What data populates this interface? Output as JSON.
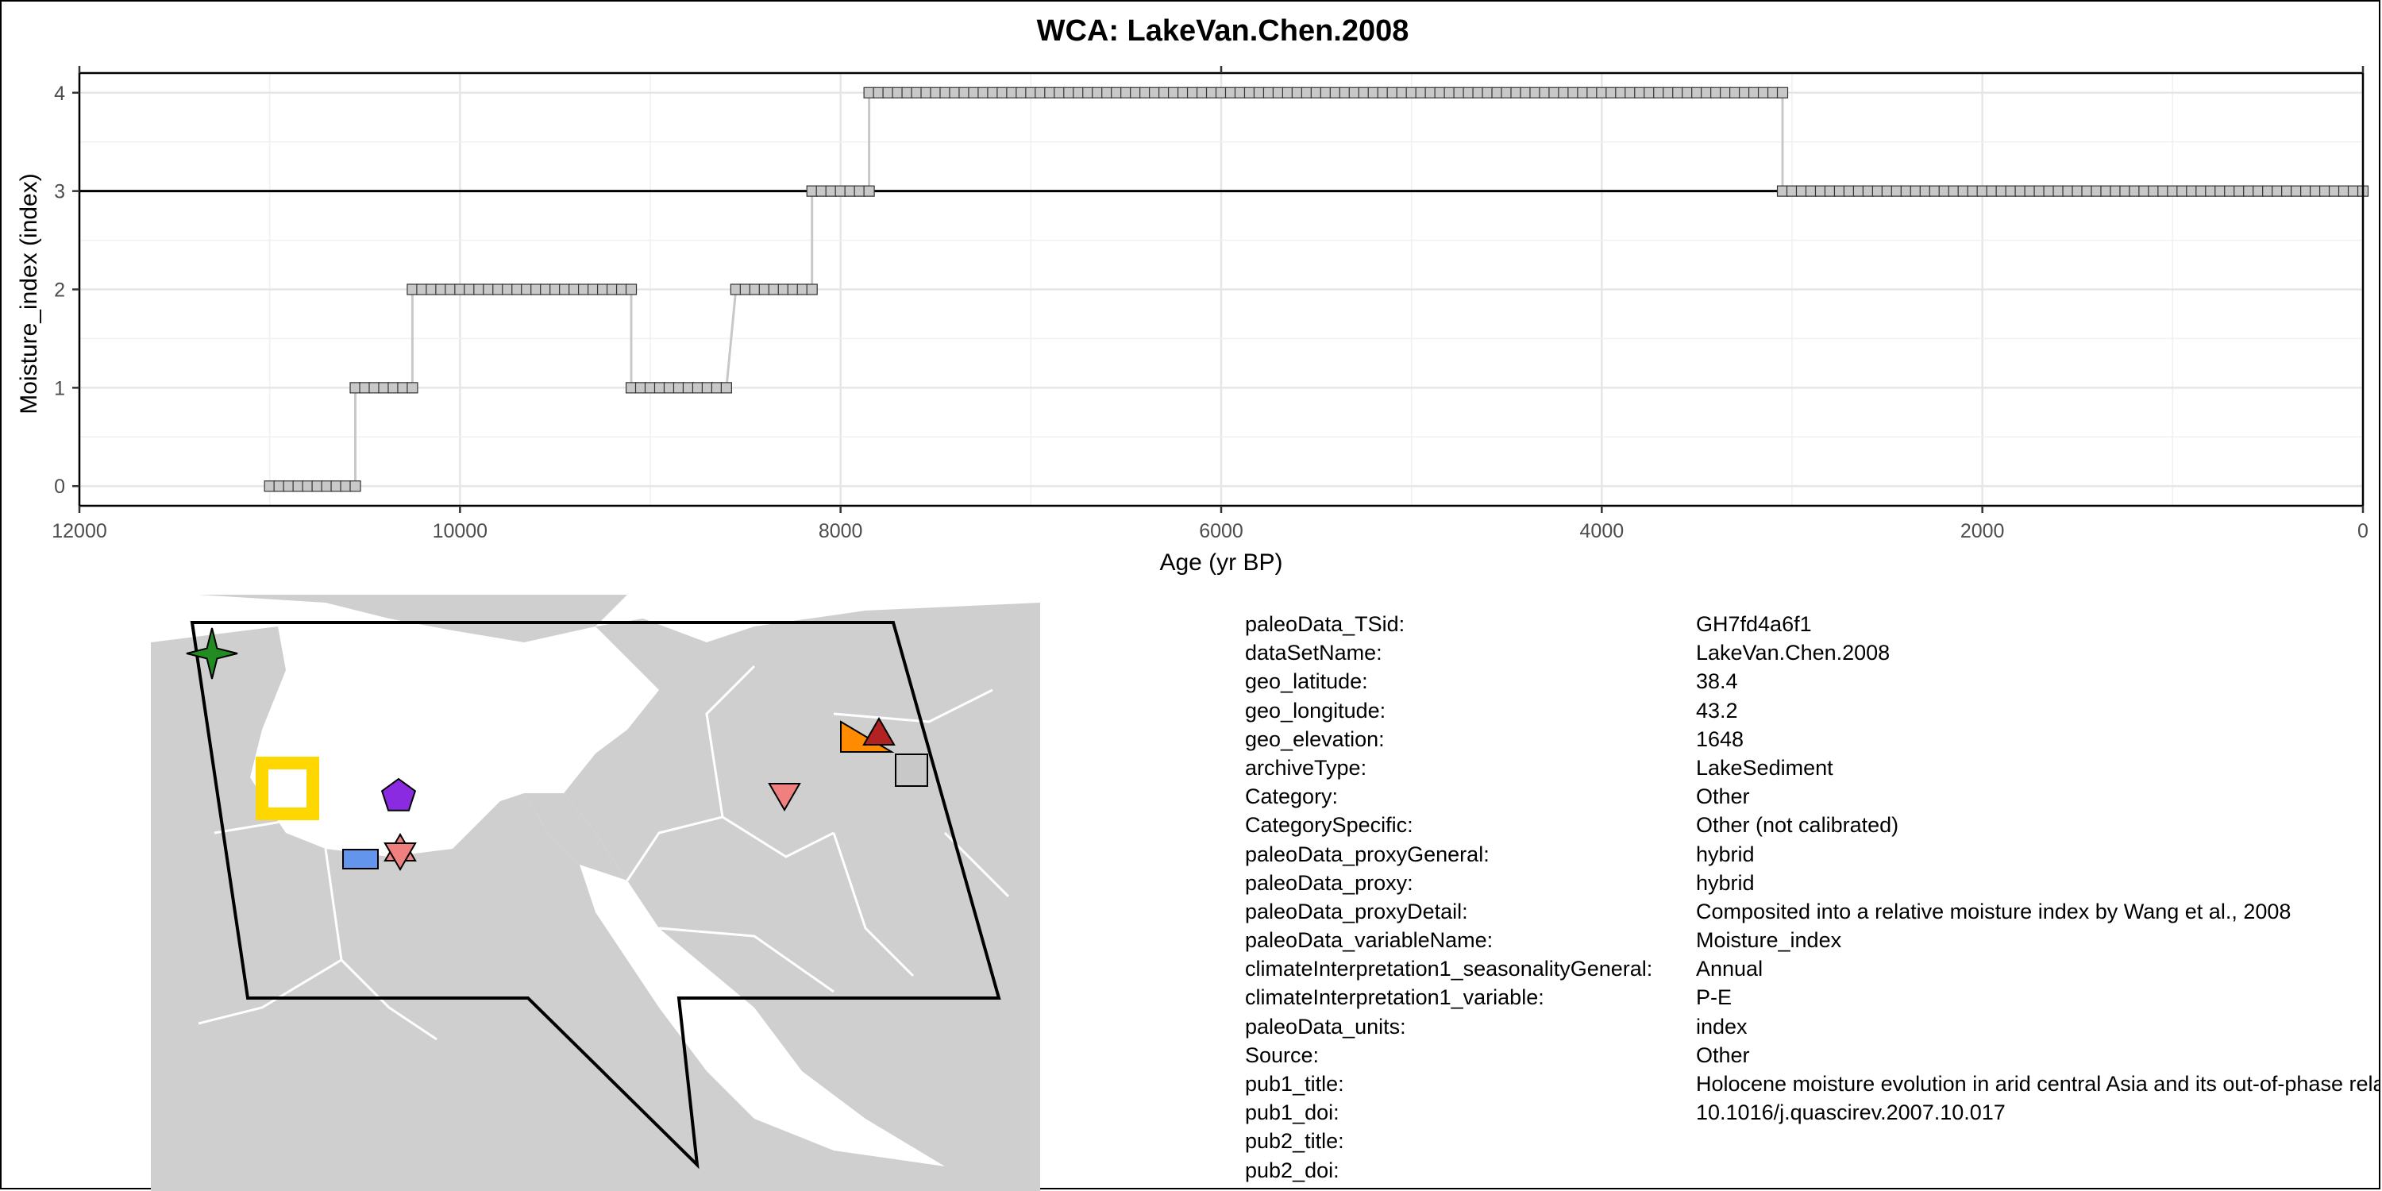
{
  "chart_data": {
    "type": "line",
    "title": "WCA: LakeVan.Chen.2008",
    "xlabel": "Age (yr BP)",
    "ylabel": "Moisture_index (index)",
    "x_reversed": true,
    "xlim": [
      12000,
      0
    ],
    "ylim": [
      -0.2,
      4.2
    ],
    "x_ticks": [
      12000,
      10000,
      8000,
      6000,
      4000,
      2000,
      0
    ],
    "y_ticks": [
      0,
      1,
      2,
      3,
      4
    ],
    "grid": true,
    "reference_line_y": 3,
    "series": [
      {
        "steps": [
          {
            "from": 11000,
            "to": 10550,
            "value": 0,
            "n": 10
          },
          {
            "from": 10550,
            "to": 10250,
            "value": 1,
            "n": 7
          },
          {
            "from": 10250,
            "to": 9100,
            "value": 2,
            "n": 24
          },
          {
            "from": 9100,
            "to": 8600,
            "value": 1,
            "n": 11
          },
          {
            "from": 8550,
            "to": 8150,
            "value": 2,
            "n": 9
          },
          {
            "from": 8150,
            "to": 7850,
            "value": 3,
            "n": 7
          },
          {
            "from": 7850,
            "to": 3050,
            "value": 4,
            "n": 97
          },
          {
            "from": 3050,
            "to": 0,
            "value": 3,
            "n": 62
          }
        ],
        "marker_color": "#c8c8c8",
        "line_color": "#c8c8c8"
      }
    ]
  },
  "map": {
    "land_color": "#cfcfcf",
    "sea_color": "#ffffff",
    "markers": [
      {
        "shape": "star4",
        "color": "#228b22"
      },
      {
        "shape": "square-open",
        "color": "#ffd700"
      },
      {
        "shape": "pentagon",
        "color": "#8a2be2"
      },
      {
        "shape": "rect",
        "color": "#6495ed"
      },
      {
        "shape": "hexagram",
        "color": "#f08080"
      },
      {
        "shape": "triangle-down",
        "color": "#f08080"
      },
      {
        "shape": "triangle",
        "color": "#b22222"
      },
      {
        "shape": "triangle-right",
        "color": "#ff8c00"
      },
      {
        "shape": "square",
        "color": "#c8c8c8"
      }
    ]
  },
  "metadata": [
    {
      "key": "paleoData_TSid:",
      "value": "GH7fd4a6f1"
    },
    {
      "key": "dataSetName:",
      "value": "LakeVan.Chen.2008"
    },
    {
      "key": "geo_latitude:",
      "value": "38.4"
    },
    {
      "key": "geo_longitude:",
      "value": "43.2"
    },
    {
      "key": "geo_elevation:",
      "value": "1648"
    },
    {
      "key": "archiveType:",
      "value": "LakeSediment"
    },
    {
      "key": "Category:",
      "value": "Other"
    },
    {
      "key": "CategorySpecific:",
      "value": "Other (not calibrated)"
    },
    {
      "key": "paleoData_proxyGeneral:",
      "value": "hybrid"
    },
    {
      "key": "paleoData_proxy:",
      "value": "hybrid"
    },
    {
      "key": "paleoData_proxyDetail:",
      "value": "Composited into a relative moisture index by Wang et al., 2008"
    },
    {
      "key": "paleoData_variableName:",
      "value": "Moisture_index"
    },
    {
      "key": "climateInterpretation1_seasonalityGeneral:",
      "value": "Annual"
    },
    {
      "key": "climateInterpretation1_variable:",
      "value": "P-E"
    },
    {
      "key": "paleoData_units:",
      "value": "index"
    },
    {
      "key": "Source:",
      "value": "Other"
    },
    {
      "key": "pub1_title:",
      "value": "Holocene moisture evolution in arid central Asia and its out-of-phase relationship with Asian monsoon history"
    },
    {
      "key": "pub1_doi:",
      "value": "10.1016/j.quascirev.2007.10.017"
    },
    {
      "key": "pub2_title:",
      "value": ""
    },
    {
      "key": "pub2_doi:",
      "value": ""
    }
  ]
}
